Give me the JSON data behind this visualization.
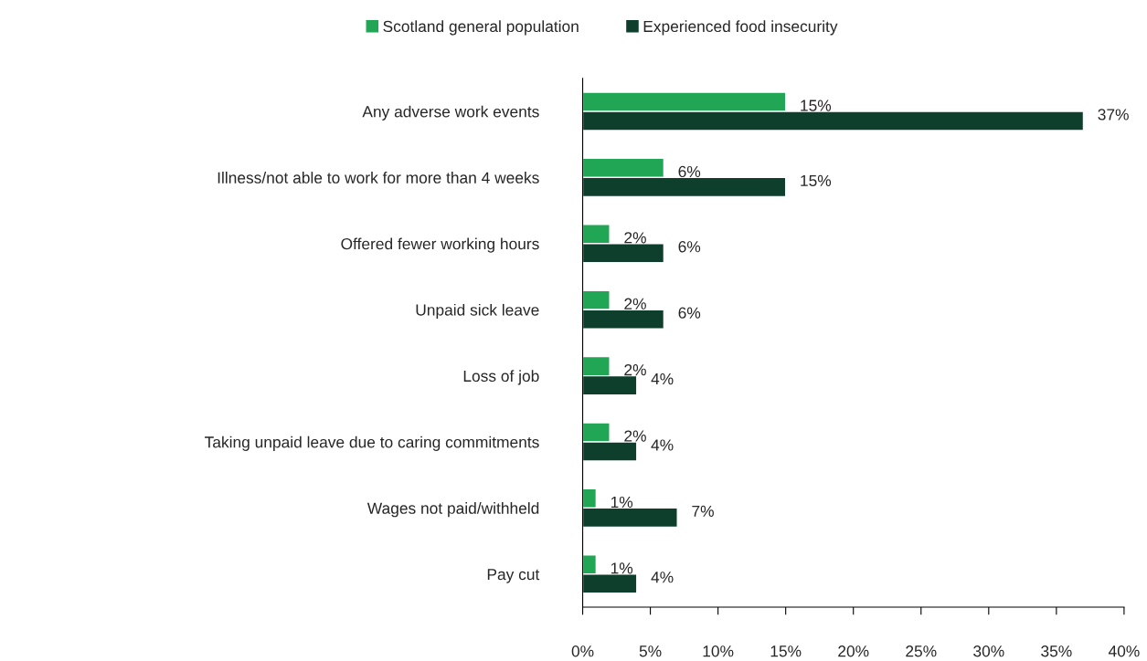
{
  "chart_data": {
    "type": "bar",
    "orientation": "horizontal",
    "categories": [
      "Any adverse work events",
      "Illness/not able to work for more than 4 weeks",
      "Offered fewer working hours",
      "Unpaid sick leave",
      "Loss of job",
      "Taking unpaid leave due to caring commitments",
      "Wages not paid/withheld",
      "Pay cut"
    ],
    "series": [
      {
        "name": "Scotland general population",
        "color": "#21a656",
        "values": [
          15,
          6,
          2,
          2,
          2,
          2,
          1,
          1
        ],
        "value_labels": [
          "15%",
          "6%",
          "2%",
          "2%",
          "2%",
          "2%",
          "1%",
          "1%"
        ]
      },
      {
        "name": "Experienced food insecurity",
        "color": "#0d3f2c",
        "values": [
          37,
          15,
          6,
          6,
          4,
          4,
          7,
          4
        ],
        "value_labels": [
          "37%",
          "15%",
          "6%",
          "6%",
          "4%",
          "4%",
          "7%",
          "4%"
        ]
      }
    ],
    "xlim": [
      0,
      40
    ],
    "xticks": [
      {
        "value": 0,
        "label": "0%"
      },
      {
        "value": 5,
        "label": "5%"
      },
      {
        "value": 10,
        "label": "10%"
      },
      {
        "value": 15,
        "label": "15%"
      },
      {
        "value": 20,
        "label": "20%"
      },
      {
        "value": 25,
        "label": "25%"
      },
      {
        "value": 30,
        "label": "30%"
      },
      {
        "value": 35,
        "label": "35%"
      },
      {
        "value": 40,
        "label": "40%"
      }
    ],
    "grid": false,
    "legend": "top"
  }
}
